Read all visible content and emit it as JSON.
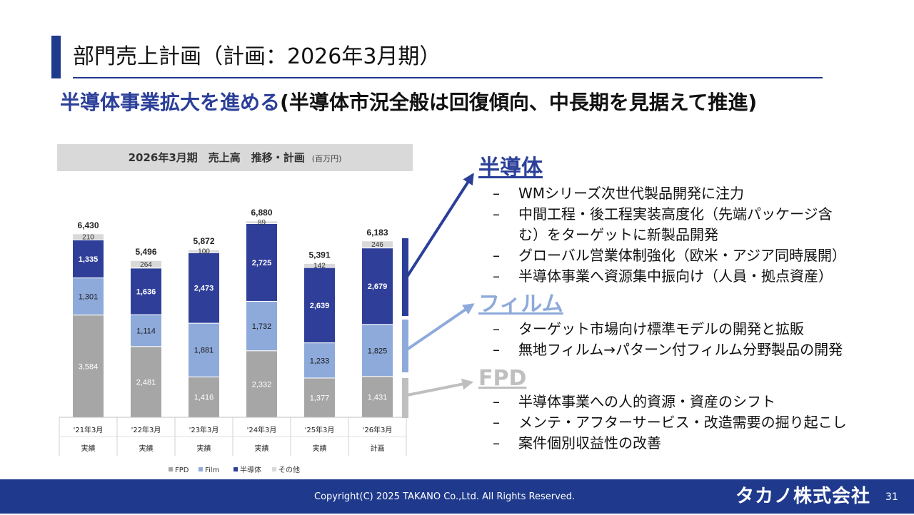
{
  "slide": {
    "title": "部門売上計画（計画：2026年3月期）",
    "subtitle_part1": "半導体事業拡大を進める",
    "subtitle_part2": "(半導体市況全般は回復傾向、中長期を見据えて推進)"
  },
  "chart_header": {
    "title": "2026年3月期　売上高　推移・計画",
    "unit": "(百万円)"
  },
  "chart_data": {
    "type": "bar",
    "stacked": true,
    "categories": [
      "'21年3月",
      "'22年3月",
      "'23年3月",
      "'24年3月",
      "'25年3月",
      "'26年3月"
    ],
    "category_sublabels": [
      "実績",
      "実績",
      "実績",
      "実績",
      "実績",
      "計画"
    ],
    "series": [
      {
        "name": "FPD",
        "values": [
          3584,
          2481,
          1416,
          2332,
          1377,
          1431
        ],
        "color": "#a6a6a6"
      },
      {
        "name": "Film",
        "values": [
          1301,
          1114,
          1881,
          1732,
          1233,
          1825
        ],
        "color": "#8eaadb"
      },
      {
        "name": "半導体",
        "values": [
          1335,
          1636,
          2473,
          2725,
          2639,
          2679
        ],
        "color": "#2f3f99"
      },
      {
        "name": "その他",
        "values": [
          210,
          264,
          100,
          89,
          142,
          246
        ],
        "color": "#d9d9d9"
      }
    ],
    "totals": [
      6430,
      5496,
      5872,
      6880,
      5391,
      6183
    ],
    "legend_position": "bottom",
    "grid": false
  },
  "segments": {
    "semi": {
      "heading": "半導体",
      "color": "#2b3f99",
      "bullets": [
        "WMシリーズ次世代製品開発に注力",
        "中間工程・後工程実装高度化（先端パッケージ含",
        "む）をターゲットに新製品開発",
        "グローバル営業体制強化（欧米・アジア同時展開）",
        "半導体事業へ資源集中振向け（人員・拠点資産）"
      ]
    },
    "film": {
      "heading": "フィルム",
      "color": "#8eaadb",
      "bullets": [
        "ターゲット市場向け標準モデルの開発と拡販",
        "無地フィルム→パターン付フィルム分野製品の開発"
      ]
    },
    "fpd": {
      "heading": "FPD",
      "color": "#bfbfbf",
      "bullets": [
        "半導体事業への人的資源・資産のシフト",
        "メンテ・アフターサービス・改造需要の掘り起こし",
        "案件個別収益性の改善"
      ]
    }
  },
  "footer": {
    "copyright": "Copyright(C) 2025 TAKANO Co.,Ltd. All Rights Reserved.",
    "logo_text": "タカノ株式会社",
    "page_number": "31"
  }
}
